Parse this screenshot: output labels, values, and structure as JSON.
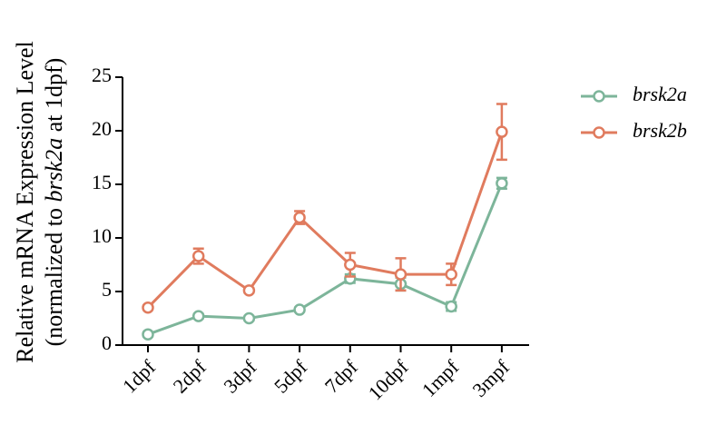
{
  "chart_data": {
    "type": "line",
    "ylabel": [
      [
        "Relative mRNA Expression Level"
      ],
      [
        "(normalized to ",
        "brsk2a",
        " at 1dpf)"
      ]
    ],
    "categories": [
      "1dpf",
      "2dpf",
      "3dpf",
      "5dpf",
      "7dpf",
      "10dpf",
      "1mpf",
      "3mpf"
    ],
    "series": [
      {
        "name": "brsk2a",
        "color": "#7db59a",
        "values": [
          1.0,
          2.7,
          2.5,
          3.3,
          6.2,
          5.7,
          3.6,
          15.1
        ],
        "errors": [
          0.2,
          0.2,
          0.2,
          0.2,
          0.4,
          0.6,
          0.4,
          0.5
        ]
      },
      {
        "name": "brsk2b",
        "color": "#e07b5e",
        "values": [
          3.5,
          8.3,
          5.1,
          11.9,
          7.5,
          6.6,
          6.6,
          19.9
        ],
        "errors": [
          0.2,
          0.7,
          0.2,
          0.6,
          1.1,
          1.5,
          1.0,
          2.6
        ]
      }
    ],
    "ylim": [
      0,
      25
    ],
    "yticks": [
      0,
      5,
      10,
      15,
      20,
      25
    ],
    "legend": "right"
  }
}
